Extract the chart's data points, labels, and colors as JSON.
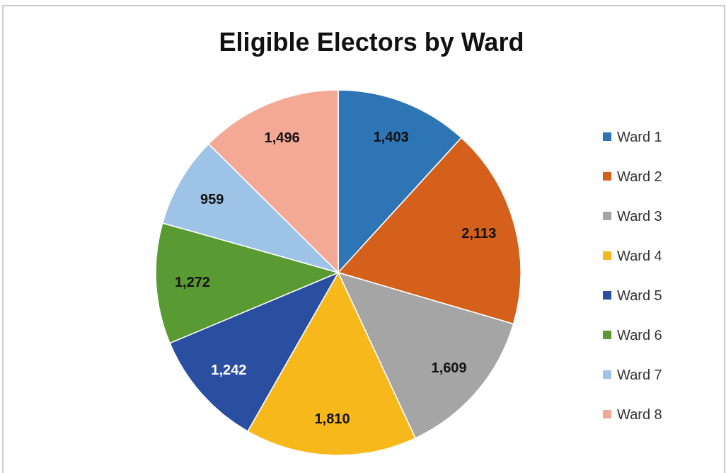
{
  "chart_data": {
    "type": "pie",
    "title": "Eligible Electors by Ward",
    "categories": [
      "Ward 1",
      "Ward 2",
      "Ward 3",
      "Ward 4",
      "Ward 5",
      "Ward 6",
      "Ward 7",
      "Ward 8"
    ],
    "values": [
      1403,
      2113,
      1609,
      1810,
      1242,
      1272,
      959,
      1496
    ],
    "colors": [
      "#2e75b6",
      "#d4601c",
      "#a5a5a5",
      "#f7b81c",
      "#2a4ea0",
      "#5a9a32",
      "#9dc3e6",
      "#f4a896"
    ],
    "value_labels": [
      "1,403",
      "2,113",
      "1,609",
      "1,810",
      "1,242",
      "1,272",
      "959",
      "1,496"
    ],
    "legend": "right"
  }
}
